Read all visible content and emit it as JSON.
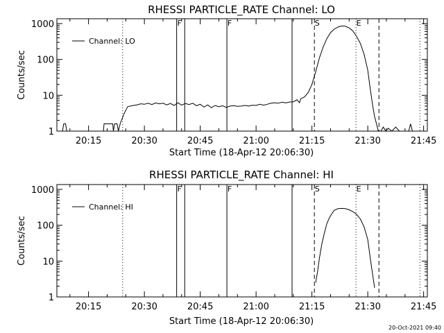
{
  "chart_data": [
    {
      "type": "line",
      "title": "RHESSI PARTICLE_RATE Channel: LO",
      "xlabel": "Start Time (18-Apr-12 20:06:30)",
      "ylabel": "Counts/sec",
      "yscale": "log",
      "ylim": [
        1,
        1000
      ],
      "xlim": [
        "20:06:30",
        "21:46:00"
      ],
      "x_ticks": [
        "20:15",
        "20:30",
        "20:45",
        "21:00",
        "21:15",
        "21:30",
        "21:45"
      ],
      "y_ticks": [
        "1",
        "10",
        "100",
        "1000"
      ],
      "legend": "top-left",
      "series": [
        {
          "name": "Channel: LO",
          "points": [
            [
              "20:08:00",
              1
            ],
            [
              "20:08:20",
              1.6
            ],
            [
              "20:08:50",
              1.6
            ],
            [
              "20:09:10",
              1
            ],
            [
              "20:19:00",
              1
            ],
            [
              "20:19:10",
              1.6
            ],
            [
              "20:21:30",
              1.6
            ],
            [
              "20:21:40",
              1
            ],
            [
              "20:22:00",
              1.6
            ],
            [
              "20:22:40",
              1.6
            ],
            [
              "20:23:00",
              1
            ],
            [
              "20:23:30",
              1.6
            ],
            [
              "20:24:30",
              3
            ],
            [
              "20:25:30",
              4.8
            ],
            [
              "20:27:00",
              5.2
            ],
            [
              "20:28:00",
              5.4
            ],
            [
              "20:29:00",
              5.8
            ],
            [
              "20:30:00",
              5.6
            ],
            [
              "20:31:00",
              6
            ],
            [
              "20:32:00",
              5.5
            ],
            [
              "20:33:00",
              6.1
            ],
            [
              "20:34:00",
              5.8
            ],
            [
              "20:35:00",
              6
            ],
            [
              "20:36:00",
              5.4
            ],
            [
              "20:37:00",
              5.9
            ],
            [
              "20:38:00",
              5.2
            ],
            [
              "20:39:00",
              6.2
            ],
            [
              "20:40:00",
              5.3
            ],
            [
              "20:41:00",
              5.9
            ],
            [
              "20:42:00",
              5.5
            ],
            [
              "20:43:00",
              6
            ],
            [
              "20:44:00",
              5.1
            ],
            [
              "20:45:00",
              5.6
            ],
            [
              "20:46:00",
              4.7
            ],
            [
              "20:47:00",
              5.4
            ],
            [
              "20:48:00",
              4.5
            ],
            [
              "20:49:00",
              5.2
            ],
            [
              "20:50:00",
              4.8
            ],
            [
              "20:51:00",
              5.1
            ],
            [
              "20:52:00",
              4.6
            ],
            [
              "20:53:00",
              5
            ],
            [
              "20:54:00",
              5.1
            ],
            [
              "20:55:00",
              4.9
            ],
            [
              "20:56:00",
              5
            ],
            [
              "20:57:00",
              5.2
            ],
            [
              "20:58:00",
              5
            ],
            [
              "20:59:00",
              5.3
            ],
            [
              "21:00:00",
              5.2
            ],
            [
              "21:01:00",
              5.6
            ],
            [
              "21:02:00",
              5.3
            ],
            [
              "21:03:00",
              5.6
            ],
            [
              "21:04:00",
              6
            ],
            [
              "21:05:00",
              6.2
            ],
            [
              "21:06:00",
              6
            ],
            [
              "21:07:00",
              6.4
            ],
            [
              "21:08:00",
              6.1
            ],
            [
              "21:09:00",
              6.5
            ],
            [
              "21:10:00",
              6.6
            ],
            [
              "21:11:00",
              7.5
            ],
            [
              "21:11:40",
              6.2
            ],
            [
              "21:12:00",
              8
            ],
            [
              "21:13:00",
              9
            ],
            [
              "21:14:00",
              12
            ],
            [
              "21:15:00",
              20
            ],
            [
              "21:16:00",
              45
            ],
            [
              "21:17:00",
              110
            ],
            [
              "21:18:00",
              220
            ],
            [
              "21:19:00",
              380
            ],
            [
              "21:20:00",
              560
            ],
            [
              "21:21:00",
              700
            ],
            [
              "21:22:00",
              800
            ],
            [
              "21:23:00",
              860
            ],
            [
              "21:24:00",
              840
            ],
            [
              "21:25:00",
              760
            ],
            [
              "21:26:00",
              620
            ],
            [
              "21:27:00",
              440
            ],
            [
              "21:28:00",
              280
            ],
            [
              "21:29:00",
              140
            ],
            [
              "21:30:00",
              50
            ],
            [
              "21:30:40",
              15
            ],
            [
              "21:31:20",
              5
            ],
            [
              "21:31:50",
              2.5
            ],
            [
              "21:32:20",
              1.6
            ],
            [
              "21:32:50",
              1
            ],
            [
              "21:33:30",
              1
            ],
            [
              "21:34:10",
              1.3
            ],
            [
              "21:34:50",
              1
            ],
            [
              "21:35:30",
              1.2
            ],
            [
              "21:36:30",
              1
            ],
            [
              "21:37:30",
              1.3
            ],
            [
              "21:38:30",
              1
            ],
            [
              "21:41:00",
              1
            ],
            [
              "21:41:30",
              1.6
            ],
            [
              "21:42:00",
              1
            ]
          ]
        }
      ],
      "markers": [
        {
          "time": "20:38:40",
          "style": "solid",
          "label": "F"
        },
        {
          "time": "20:40:50",
          "style": "solid",
          "label": ""
        },
        {
          "time": "20:52:10",
          "style": "solid",
          "label": "F"
        },
        {
          "time": "21:09:40",
          "style": "solid",
          "label": ""
        },
        {
          "time": "21:15:40",
          "style": "dashed",
          "label": "S"
        },
        {
          "time": "21:26:50",
          "style": "dotted",
          "label": "E"
        },
        {
          "time": "21:33:00",
          "style": "dashed",
          "label": ""
        },
        {
          "time": "20:24:10",
          "style": "dotted",
          "label": ""
        },
        {
          "time": "21:44:00",
          "style": "dotted",
          "label": ""
        }
      ]
    },
    {
      "type": "line",
      "title": "RHESSI PARTICLE_RATE Channel: HI",
      "xlabel": "Start Time (18-Apr-12 20:06:30)",
      "ylabel": "Counts/sec",
      "yscale": "log",
      "ylim": [
        1,
        1000
      ],
      "xlim": [
        "20:06:30",
        "21:46:00"
      ],
      "x_ticks": [
        "20:15",
        "20:30",
        "20:45",
        "21:00",
        "21:15",
        "21:30",
        "21:45"
      ],
      "y_ticks": [
        "1",
        "10",
        "100",
        "1000"
      ],
      "legend": "top-left",
      "series": [
        {
          "name": "Channel: HI",
          "points": [
            [
              "21:16:00",
              2.5
            ],
            [
              "21:16:30",
              5
            ],
            [
              "21:17:00",
              12
            ],
            [
              "21:17:40",
              30
            ],
            [
              "21:18:20",
              60
            ],
            [
              "21:19:00",
              110
            ],
            [
              "21:19:40",
              160
            ],
            [
              "21:20:20",
              210
            ],
            [
              "21:21:00",
              260
            ],
            [
              "21:22:00",
              290
            ],
            [
              "21:23:00",
              295
            ],
            [
              "21:24:00",
              290
            ],
            [
              "21:25:00",
              270
            ],
            [
              "21:26:00",
              240
            ],
            [
              "21:27:00",
              200
            ],
            [
              "21:28:00",
              150
            ],
            [
              "21:29:00",
              90
            ],
            [
              "21:30:00",
              40
            ],
            [
              "21:30:40",
              12
            ],
            [
              "21:31:20",
              4
            ],
            [
              "21:31:50",
              1.8
            ]
          ]
        }
      ],
      "markers": [
        {
          "time": "20:38:40",
          "style": "solid",
          "label": "F"
        },
        {
          "time": "20:40:50",
          "style": "solid",
          "label": ""
        },
        {
          "time": "20:52:10",
          "style": "solid",
          "label": "F"
        },
        {
          "time": "21:09:40",
          "style": "solid",
          "label": ""
        },
        {
          "time": "21:15:40",
          "style": "dashed",
          "label": "S"
        },
        {
          "time": "21:26:50",
          "style": "dotted",
          "label": "E"
        },
        {
          "time": "21:33:00",
          "style": "dashed",
          "label": ""
        },
        {
          "time": "20:24:10",
          "style": "dotted",
          "label": ""
        },
        {
          "time": "21:44:00",
          "style": "dotted",
          "label": ""
        }
      ]
    }
  ],
  "footer": {
    "timestamp": "20-Oct-2021 09:40"
  }
}
